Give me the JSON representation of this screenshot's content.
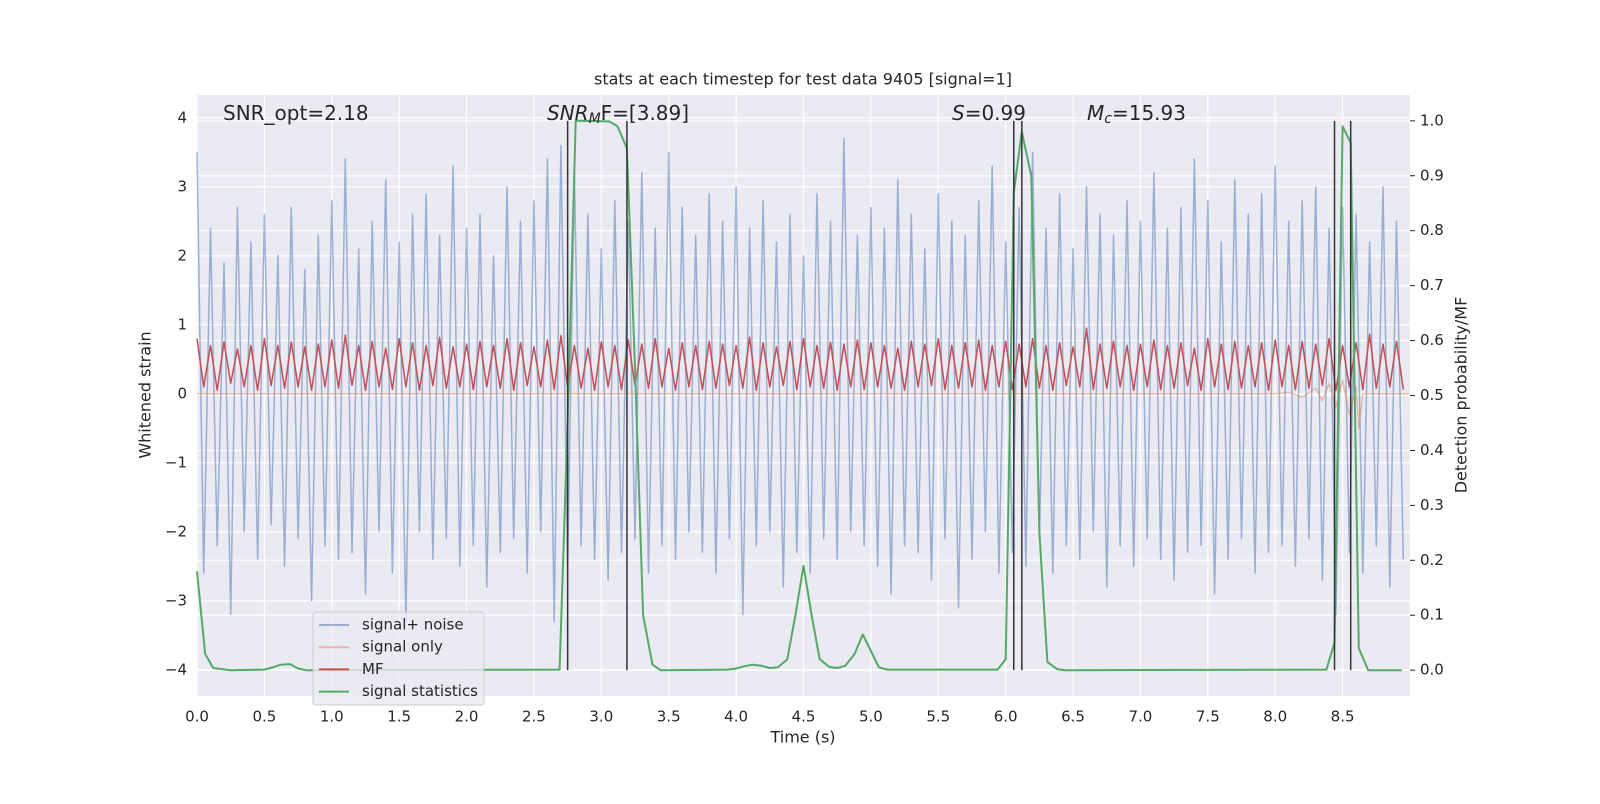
{
  "chart_data": {
    "type": "line",
    "title": "stats at each timestep for test data 9405 [signal=1]",
    "xlabel": "Time (s)",
    "ylabel": "Whitened strain",
    "y2label": "Detection probability/MF",
    "annotations": [
      {
        "main": "SNR_opt=2.18"
      },
      {
        "main": "SNR",
        "sub": "M",
        "tail": "F=[3.89]"
      },
      {
        "main": "S",
        "tail": "=0.99"
      },
      {
        "main": "M",
        "sub": "c",
        "tail": "=15.93"
      }
    ],
    "xlim": [
      0,
      9.0
    ],
    "ylim": [
      -4.38,
      4.33
    ],
    "y2lim": [
      -0.047,
      1.047
    ],
    "xticks": [
      {
        "value": 0,
        "label": "0.0"
      },
      0.5,
      {
        "value": 1,
        "label": "1.0"
      },
      1.5,
      {
        "value": 2,
        "label": "2.0"
      },
      2.5,
      {
        "value": 3,
        "label": "3.0"
      },
      3.5,
      {
        "value": 4,
        "label": "4.0"
      },
      4.5,
      {
        "value": 5,
        "label": "5.0"
      },
      5.5,
      {
        "value": 6,
        "label": "6.0"
      },
      6.5,
      {
        "value": 7,
        "label": "7.0"
      },
      7.5,
      {
        "value": 8,
        "label": "8.0"
      },
      8.5
    ],
    "yticks": [
      {
        "value": -4,
        "label": "−4"
      },
      {
        "value": -3,
        "label": "−3"
      },
      {
        "value": -2,
        "label": "−2"
      },
      {
        "value": -1,
        "label": "−1"
      },
      0,
      1,
      2,
      3,
      4
    ],
    "y2ticks": [
      {
        "value": 0,
        "label": "0.0"
      },
      0.1,
      0.2,
      0.3,
      0.4,
      0.5,
      0.6,
      0.7,
      0.8,
      0.9,
      {
        "value": 1,
        "label": "1.0"
      }
    ],
    "grid": true,
    "legend": "lower left",
    "vlines": [
      2.75,
      3.19,
      6.06,
      6.12,
      8.44,
      8.56
    ],
    "vline_color": "#333333",
    "x": [
      0,
      0.05,
      0.1,
      0.15,
      0.2,
      0.25,
      0.3,
      0.35,
      0.4,
      0.45,
      0.5,
      0.55,
      0.6,
      0.65,
      0.7,
      0.75,
      0.8,
      0.85,
      0.9,
      0.95,
      1,
      1.05,
      1.1,
      1.15,
      1.2,
      1.25,
      1.3,
      1.35,
      1.4,
      1.45,
      1.5,
      1.55,
      1.6,
      1.65,
      1.7,
      1.75,
      1.8,
      1.85,
      1.9,
      1.95,
      2,
      2.05,
      2.1,
      2.15,
      2.2,
      2.25,
      2.3,
      2.35,
      2.4,
      2.45,
      2.5,
      2.55,
      2.6,
      2.65,
      2.7,
      2.75,
      2.8,
      2.85,
      2.9,
      2.95,
      3,
      3.05,
      3.1,
      3.15,
      3.2,
      3.25,
      3.3,
      3.35,
      3.4,
      3.45,
      3.5,
      3.55,
      3.6,
      3.65,
      3.7,
      3.75,
      3.8,
      3.85,
      3.9,
      3.95,
      4,
      4.05,
      4.1,
      4.15,
      4.2,
      4.25,
      4.3,
      4.35,
      4.4,
      4.45,
      4.5,
      4.55,
      4.6,
      4.65,
      4.7,
      4.75,
      4.8,
      4.85,
      4.9,
      4.95,
      5,
      5.05,
      5.1,
      5.15,
      5.2,
      5.25,
      5.3,
      5.35,
      5.4,
      5.45,
      5.5,
      5.55,
      5.6,
      5.65,
      5.7,
      5.75,
      5.8,
      5.85,
      5.9,
      5.95,
      6,
      6.05,
      6.1,
      6.15,
      6.2,
      6.25,
      6.3,
      6.35,
      6.4,
      6.45,
      6.5,
      6.55,
      6.6,
      6.65,
      6.7,
      6.75,
      6.8,
      6.85,
      6.9,
      6.95,
      7,
      7.05,
      7.1,
      7.15,
      7.2,
      7.25,
      7.3,
      7.35,
      7.4,
      7.45,
      7.5,
      7.55,
      7.6,
      7.65,
      7.7,
      7.75,
      7.8,
      7.85,
      7.9,
      7.95,
      8,
      8.05,
      8.1,
      8.15,
      8.2,
      8.25,
      8.3,
      8.35,
      8.4,
      8.45,
      8.5,
      8.55,
      8.6,
      8.65,
      8.7,
      8.75,
      8.8,
      8.85,
      8.9,
      8.95
    ],
    "series": [
      {
        "name": "signal+ noise",
        "color": "#4c72b0",
        "opacity": 0.5,
        "values": [
          3.5,
          -2.6,
          2.4,
          -2.2,
          1.9,
          -3.2,
          2.7,
          -2.0,
          2.2,
          -2.4,
          2.6,
          -1.9,
          2.0,
          -2.5,
          2.7,
          -2.1,
          1.8,
          -3.0,
          2.3,
          -2.2,
          2.8,
          -2.4,
          3.4,
          -2.3,
          2.1,
          -2.9,
          2.5,
          -2.0,
          3.1,
          -2.6,
          2.2,
          -3.3,
          2.6,
          -2.0,
          2.9,
          -2.4,
          2.3,
          -2.1,
          3.3,
          -2.5,
          2.4,
          -2.2,
          2.6,
          -2.8,
          2.0,
          -2.3,
          3.0,
          -2.1,
          2.5,
          -2.6,
          2.8,
          -2.0,
          3.4,
          -3.3,
          3.6,
          -2.5,
          3.2,
          -2.2,
          2.6,
          -2.4,
          2.1,
          -2.7,
          2.8,
          -2.3,
          2.5,
          -2.1,
          3.2,
          -2.6,
          2.4,
          -2.2,
          3.5,
          -2.4,
          2.7,
          -2.0,
          2.3,
          -2.3,
          2.9,
          -2.6,
          2.5,
          -2.1,
          3.0,
          -3.2,
          2.4,
          -2.2,
          2.8,
          -2.0,
          2.2,
          -2.8,
          2.6,
          -2.3,
          2.0,
          -2.6,
          2.9,
          -2.1,
          2.5,
          -2.4,
          3.7,
          -2.0,
          2.3,
          -2.2,
          2.7,
          -2.5,
          2.4,
          -2.9,
          3.1,
          -2.2,
          2.6,
          -2.3,
          2.1,
          -2.7,
          2.9,
          -2.1,
          2.5,
          -3.1,
          2.3,
          -2.4,
          2.8,
          -2.0,
          3.3,
          -2.6,
          2.2,
          -2.3,
          2.7,
          -2.5,
          3.5,
          -2.1,
          2.4,
          -2.6,
          2.9,
          -2.2,
          2.1,
          -2.4,
          3.0,
          -2.0,
          2.6,
          -2.8,
          2.3,
          -2.2,
          2.8,
          -2.5,
          2.5,
          -2.1,
          3.2,
          -2.4,
          2.4,
          -2.7,
          2.7,
          -2.3,
          3.4,
          -2.2,
          2.8,
          -2.9,
          2.2,
          -2.4,
          3.1,
          -2.1,
          2.6,
          -2.6,
          2.9,
          -2.3,
          3.3,
          -2.2,
          2.5,
          -2.5,
          2.8,
          -2.1,
          3.0,
          -2.7,
          2.4,
          -3.2,
          2.7,
          -2.3,
          2.6,
          -2.6,
          2.2,
          -2.2,
          3.0,
          -2.8,
          2.5,
          -2.4
        ]
      },
      {
        "name": "signal only",
        "color": "#dd8452",
        "opacity": 0.5,
        "x": [
          0,
          8.0,
          8.1,
          8.2,
          8.3,
          8.35,
          8.4,
          8.45,
          8.5,
          8.55,
          8.6,
          8.62,
          8.65,
          8.7,
          9.0
        ],
        "values": [
          0,
          0,
          0.02,
          -0.05,
          0.08,
          -0.1,
          0.15,
          -0.2,
          0.2,
          -0.3,
          0.1,
          -0.5,
          0,
          0,
          0
        ]
      },
      {
        "name": "MF",
        "color": "#c44e52",
        "opacity": 1,
        "values": [
          0.8,
          0.1,
          0.7,
          0.05,
          0.75,
          0.15,
          0.65,
          0.1,
          0.7,
          0.05,
          0.8,
          0.12,
          0.7,
          0.08,
          0.75,
          0.1,
          0.68,
          0.05,
          0.72,
          0.1,
          0.78,
          0.08,
          0.85,
          0.12,
          0.7,
          0.05,
          0.76,
          0.1,
          0.66,
          0.06,
          0.8,
          0.1,
          0.74,
          0.05,
          0.7,
          0.12,
          0.82,
          0.08,
          0.68,
          0.1,
          0.72,
          0.06,
          0.76,
          0.1,
          0.7,
          0.08,
          0.8,
          0.05,
          0.74,
          0.12,
          0.68,
          0.1,
          0.78,
          0.06,
          0.84,
          0.1,
          0.7,
          0.08,
          0.66,
          0.05,
          0.75,
          0.1,
          0.7,
          0.06,
          0.78,
          0.12,
          0.72,
          0.08,
          0.8,
          0.1,
          0.66,
          0.05,
          0.74,
          0.1,
          0.7,
          0.06,
          0.76,
          0.08,
          0.72,
          0.12,
          0.7,
          0.08,
          0.82,
          0.05,
          0.74,
          0.1,
          0.68,
          0.12,
          0.76,
          0.06,
          0.8,
          0.1,
          0.7,
          0.08,
          0.75,
          0.05,
          0.72,
          0.1,
          0.78,
          0.06,
          0.74,
          0.1,
          0.7,
          0.08,
          0.66,
          0.05,
          0.76,
          0.1,
          0.72,
          0.12,
          0.8,
          0.06,
          0.7,
          0.08,
          0.74,
          0.1,
          0.78,
          0.05,
          0.7,
          0.1,
          0.76,
          0.06,
          0.72,
          0.1,
          0.8,
          0.08,
          0.7,
          0.05,
          0.74,
          0.12,
          0.68,
          0.1,
          0.95,
          0.06,
          0.72,
          0.08,
          0.76,
          0.1,
          0.7,
          0.05,
          0.72,
          0.1,
          0.78,
          0.06,
          0.7,
          0.08,
          0.74,
          0.12,
          0.66,
          0.05,
          0.8,
          0.1,
          0.72,
          0.06,
          0.76,
          0.08,
          0.7,
          0.1,
          0.74,
          0.05,
          0.78,
          0.1,
          0.7,
          0.06,
          0.76,
          0.08,
          0.72,
          0.12,
          0.8,
          0.05,
          0.7,
          0.1,
          0.74,
          0.06,
          0.86,
          0.08,
          0.72,
          0.1,
          0.76,
          0.06
        ]
      },
      {
        "name": "signal statistics",
        "color": "#55a868",
        "opacity": 1,
        "axis": "y2",
        "x": [
          0,
          0.06,
          0.12,
          0.25,
          0.5,
          0.56,
          0.62,
          0.69,
          0.75,
          0.81,
          2.69,
          2.75,
          2.81,
          3.06,
          3.12,
          3.19,
          3.25,
          3.31,
          3.38,
          3.44,
          3.94,
          4.0,
          4.06,
          4.12,
          4.19,
          4.25,
          4.31,
          4.38,
          4.44,
          4.5,
          4.56,
          4.62,
          4.69,
          4.75,
          4.81,
          4.88,
          4.94,
          5.0,
          5.06,
          5.12,
          5.94,
          6.0,
          6.06,
          6.12,
          6.19,
          6.25,
          6.31,
          6.38,
          6.44,
          8.38,
          8.44,
          8.5,
          8.56,
          8.62,
          8.69,
          8.94
        ],
        "values": [
          0.18,
          0.03,
          0.004,
          0,
          0.001,
          0.005,
          0.01,
          0.011,
          0.003,
          0,
          0.001,
          0.45,
          1.0,
          0.999,
          0.99,
          0.95,
          0.55,
          0.1,
          0.01,
          0,
          0.001,
          0.003,
          0.007,
          0.01,
          0.008,
          0.004,
          0.005,
          0.02,
          0.1,
          0.19,
          0.1,
          0.02,
          0.006,
          0.004,
          0.008,
          0.03,
          0.065,
          0.035,
          0.005,
          0.001,
          0.001,
          0.02,
          0.87,
          0.98,
          0.9,
          0.25,
          0.015,
          0.002,
          0,
          0.001,
          0.05,
          0.99,
          0.96,
          0.04,
          0,
          0
        ]
      }
    ]
  }
}
